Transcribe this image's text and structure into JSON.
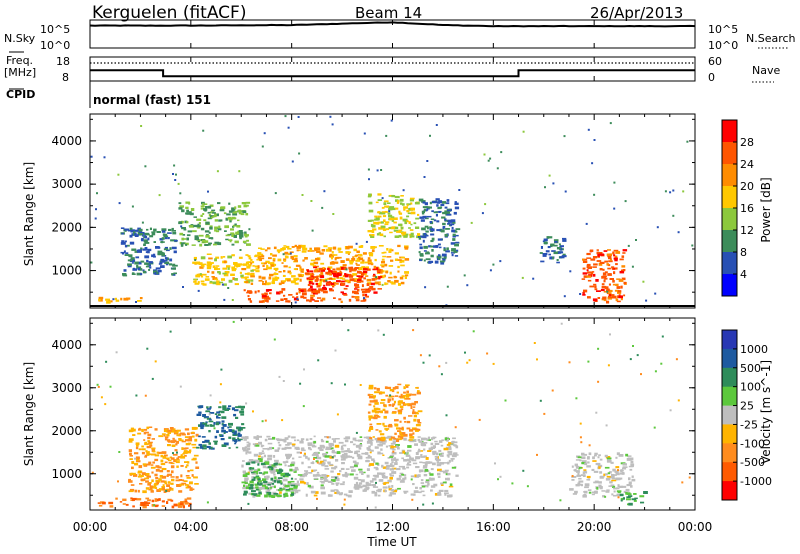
{
  "header": {
    "station": "Kerguelen (fitACF)",
    "beam": "Beam 14",
    "date": "26/Apr/2013"
  },
  "nsky_panel": {
    "left_label": "N.Sky",
    "left_ticks": [
      "10^5",
      "10^0"
    ],
    "right_label": "N.Search",
    "right_ticks": [
      "10^5",
      "10^0"
    ]
  },
  "freq_panel": {
    "left_label_1": "Freq.",
    "left_label_2": "[MHz]",
    "left_ticks": [
      "18",
      "8"
    ],
    "right_label": "Nave",
    "right_ticks": [
      "60",
      "0"
    ],
    "cpid_label": "CPID",
    "cpid_text": "normal (fast) 151"
  },
  "power_colorbar": {
    "title": "Power [dB]",
    "ticks": [
      "28",
      "24",
      "20",
      "16",
      "12",
      "8",
      "4"
    ],
    "colors": [
      "#ff0000",
      "#ff5500",
      "#ff8c00",
      "#ffc800",
      "#8cc83c",
      "#3c8c5a",
      "#2850b4",
      "#0000ff"
    ]
  },
  "velocity_colorbar": {
    "title": "Velocity [m s^-1]",
    "ticks": [
      "1000",
      "500",
      "100",
      "25",
      "-25",
      "-100",
      "-500",
      "-1000"
    ],
    "colors": [
      "#2838b4",
      "#1e5aa0",
      "#2e8c5a",
      "#5cc83c",
      "#bebebe",
      "#ffb400",
      "#ff8c1e",
      "#ff5a00",
      "#ff0000"
    ]
  },
  "axes": {
    "ylabel": "Slant Range [km]",
    "yticks": [
      "4000",
      "3000",
      "2000",
      "1000"
    ],
    "xlabel": "Time UT",
    "xticks": [
      "00:00",
      "04:00",
      "08:00",
      "12:00",
      "16:00",
      "20:00",
      "00:00"
    ]
  },
  "chart_data": [
    {
      "type": "line",
      "name": "N.Sky / N.Search",
      "x_hours": [
        0,
        4,
        8,
        12,
        14,
        16,
        20,
        24
      ],
      "y_log10": [
        4.0,
        4.0,
        4.1,
        4.6,
        4.1,
        3.9,
        3.9,
        3.9
      ],
      "ylim_log10": [
        0,
        5
      ],
      "xlim_hours": [
        0,
        24
      ]
    },
    {
      "type": "line",
      "name": "Frequency",
      "x_hours": [
        0,
        2.9,
        2.9,
        17.0,
        17.0,
        24
      ],
      "frequency_mhz": [
        12.5,
        12.5,
        10.0,
        10.0,
        12.5,
        12.5
      ],
      "nave": [
        45,
        45,
        45,
        45,
        45,
        45
      ],
      "freq_range_mhz": [
        8,
        18
      ],
      "nave_range": [
        0,
        60
      ]
    },
    {
      "type": "heatmap",
      "name": "Power",
      "x_range_hours": [
        0,
        24
      ],
      "y_range_km": [
        180,
        4600
      ],
      "regions": [
        {
          "x": [
            1.2,
            3.4
          ],
          "y": [
            900,
            2000
          ],
          "power_db": 8
        },
        {
          "x": [
            3.5,
            6.2
          ],
          "y": [
            1600,
            2600
          ],
          "power_db": 12
        },
        {
          "x": [
            4.0,
            6.5
          ],
          "y": [
            700,
            1400
          ],
          "power_db": 18
        },
        {
          "x": [
            6.5,
            12.5
          ],
          "y": [
            700,
            1600
          ],
          "power_db": 20
        },
        {
          "x": [
            6.0,
            11.0
          ],
          "y": [
            300,
            600
          ],
          "power_db": 26
        },
        {
          "x": [
            8.5,
            11.5
          ],
          "y": [
            500,
            1100
          ],
          "power_db": 28
        },
        {
          "x": [
            11.0,
            13.0
          ],
          "y": [
            1800,
            2800
          ],
          "power_db": 16
        },
        {
          "x": [
            13.0,
            14.5
          ],
          "y": [
            1200,
            2700
          ],
          "power_db": 8
        },
        {
          "x": [
            0.3,
            2.0
          ],
          "y": [
            300,
            400
          ],
          "power_db": 20
        },
        {
          "x": [
            19.5,
            21.2
          ],
          "y": [
            300,
            1500
          ],
          "power_db": 26
        },
        {
          "x": [
            17.8,
            18.8
          ],
          "y": [
            1200,
            1800
          ],
          "power_db": 8
        }
      ]
    },
    {
      "type": "heatmap",
      "name": "Velocity",
      "x_range_hours": [
        0,
        24
      ],
      "y_range_km": [
        180,
        4600
      ],
      "regions": [
        {
          "x": [
            1.5,
            4.2
          ],
          "y": [
            600,
            2100
          ],
          "velocity_ms": -100
        },
        {
          "x": [
            4.2,
            6.0
          ],
          "y": [
            1600,
            2600
          ],
          "velocity_ms": 500
        },
        {
          "x": [
            6.0,
            14.5
          ],
          "y": [
            500,
            1900
          ],
          "velocity_ms": 0
        },
        {
          "x": [
            6.0,
            8.0
          ],
          "y": [
            500,
            1300
          ],
          "velocity_ms": 100
        },
        {
          "x": [
            11.0,
            13.0
          ],
          "y": [
            1800,
            3100
          ],
          "velocity_ms": -100
        },
        {
          "x": [
            0.3,
            4.0
          ],
          "y": [
            250,
            450
          ],
          "velocity_ms": -500
        },
        {
          "x": [
            19.0,
            21.5
          ],
          "y": [
            500,
            1500
          ],
          "velocity_ms": 0
        },
        {
          "x": [
            21.0,
            22.0
          ],
          "y": [
            300,
            600
          ],
          "velocity_ms": 100
        }
      ]
    }
  ]
}
